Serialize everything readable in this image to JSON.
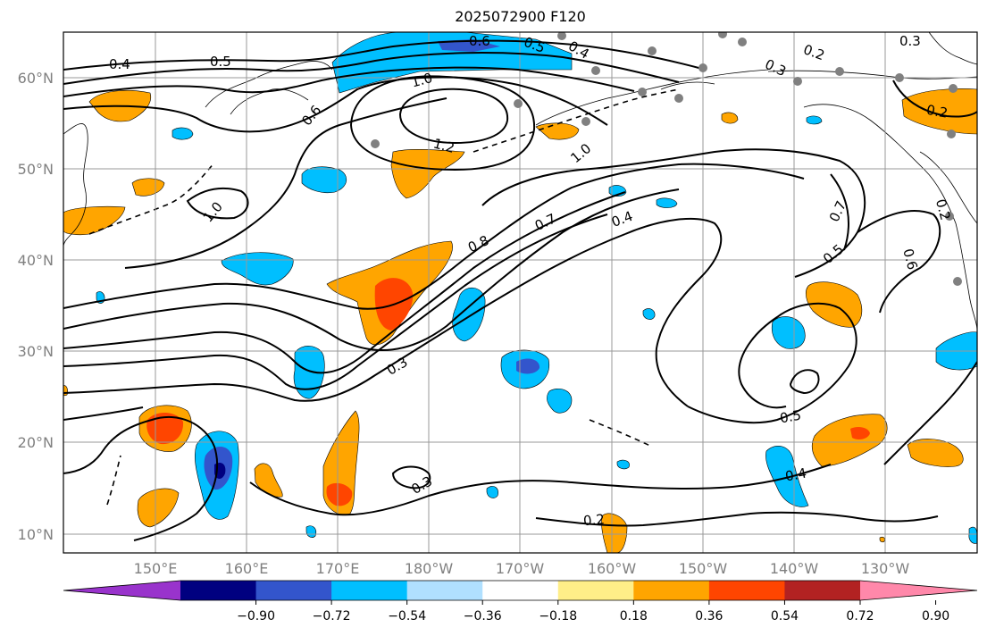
{
  "title": "2025072900 F120",
  "map": {
    "lon_ticks": [
      "150°E",
      "160°E",
      "170°E",
      "180°W",
      "170°W",
      "160°W",
      "150°W",
      "140°W",
      "130°W"
    ],
    "lat_ticks": [
      "60°N",
      "50°N",
      "40°N",
      "30°N",
      "20°N",
      "10°N"
    ],
    "contour_labels": [
      "0.4",
      "0.5",
      "0.6",
      "0.5",
      "0.4",
      "0.3",
      "0.2",
      "0.3",
      "1.0",
      "0.6",
      "1.2",
      "1.0",
      "0.2",
      "1.0",
      "0.7",
      "0.4",
      "0.8",
      "0.7",
      "0.5",
      "0.6",
      "0.2",
      "0.3",
      "0.5",
      "0.4",
      "0.3",
      "0.2"
    ]
  },
  "colorbar": {
    "tick_labels": [
      "−0.90",
      "−0.72",
      "−0.54",
      "−0.36",
      "−0.18",
      "0.18",
      "0.36",
      "0.54",
      "0.72",
      "0.90"
    ],
    "colors": [
      "#9933cc",
      "#000080",
      "#3355cc",
      "#00bfff",
      "#b0e0ff",
      "#ffffff",
      "#ffee88",
      "#ffa500",
      "#ff4500",
      "#b22222",
      "#ff88aa"
    ]
  }
}
